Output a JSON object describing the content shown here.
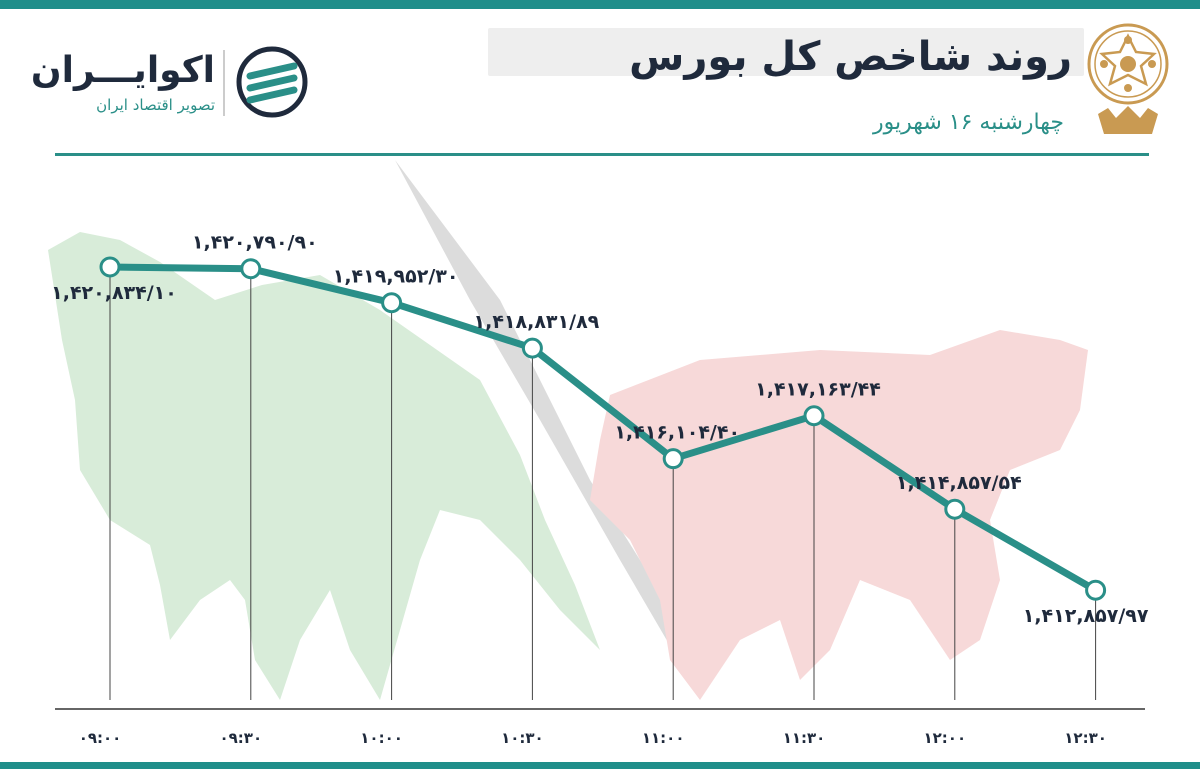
{
  "header": {
    "title": "روند شاخص کل بورس",
    "subtitle": "چهارشنبه ۱۶ شهریور"
  },
  "logo": {
    "name": "اکوایـــران",
    "tagline": "تصویر اقتصاد ایران"
  },
  "colors": {
    "accent": "#2a8f88",
    "line": "#2a8f88",
    "text_dark": "#1f2a3c",
    "bull_bg": "#d8ecd9",
    "bear_bg": "#f7d9d9",
    "seal": "#c99a52"
  },
  "icons": {
    "seal": "stock-exchange-seal-icon",
    "logo": "ecoiran-logo-icon"
  },
  "chart_data": {
    "type": "line",
    "title": "روند شاخص کل بورس",
    "subtitle": "چهارشنبه ۱۶ شهریور",
    "categories": [
      "۰۹:۰۰",
      "۰۹:۳۰",
      "۱۰:۰۰",
      "۱۰:۳۰",
      "۱۱:۰۰",
      "۱۱:۳۰",
      "۱۲:۰۰",
      "۱۲:۳۰"
    ],
    "values": [
      1420834.1,
      1420790.9,
      1419952.3,
      1418831.89,
      1416104.4,
      1417163.44,
      1414857.54,
      1412857.97
    ],
    "value_labels": [
      "۱,۴۲۰,۸۳۴/۱۰",
      "۱,۴۲۰,۷۹۰/۹۰",
      "۱,۴۱۹,۹۵۲/۳۰",
      "۱,۴۱۸,۸۳۱/۸۹",
      "۱,۴۱۶,۱۰۴/۴۰",
      "۱,۴۱۷,۱۶۳/۴۴",
      "۱,۴۱۴,۸۵۷/۵۴",
      "۱,۴۱۲,۸۵۷/۹۷"
    ],
    "xlabel": "",
    "ylabel": "",
    "ylim": [
      1412000,
      1421500
    ],
    "grid": false,
    "legend": "none"
  }
}
